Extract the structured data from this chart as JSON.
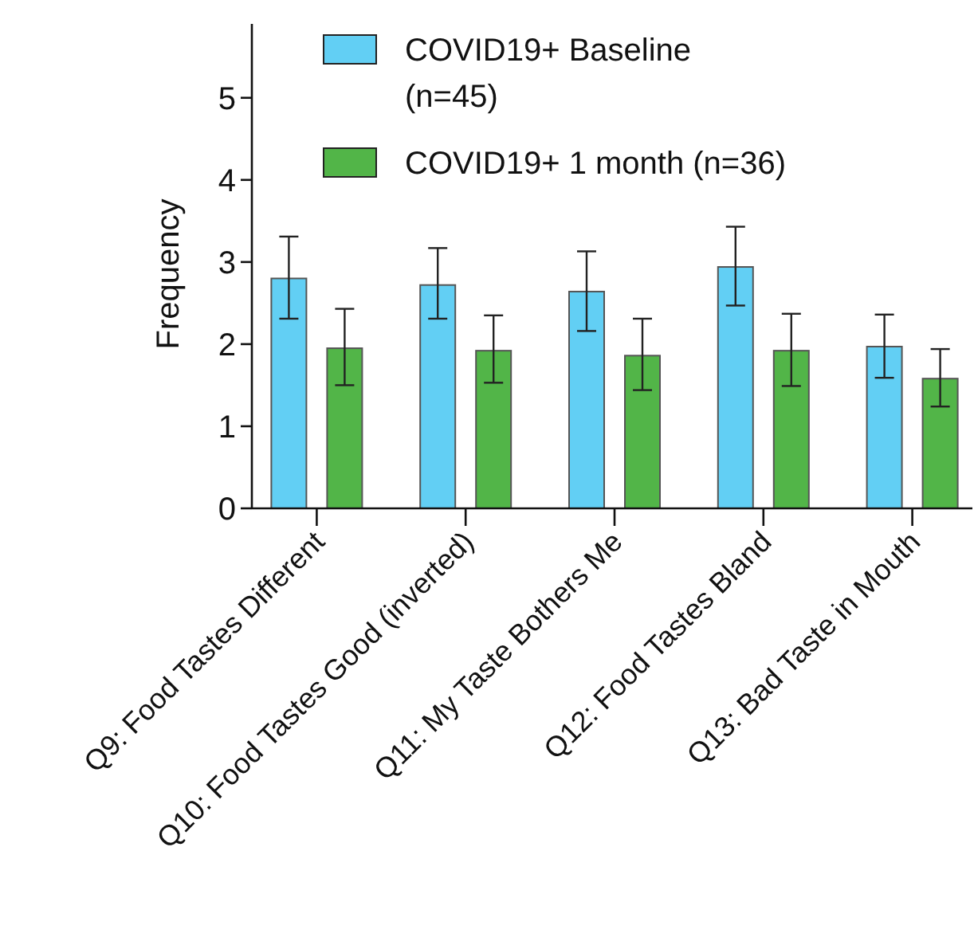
{
  "chart_data": {
    "type": "bar",
    "ylabel": "Frequency",
    "categories": [
      "Q9: Food Tastes Different",
      "Q10: Food Tastes Good (inverted)",
      "Q11: My Taste Bothers Me",
      "Q12: Food Tastes Bland",
      "Q13: Bad Taste in Mouth"
    ],
    "series": [
      {
        "name": "COVID19+ Baseline (n=45)",
        "color": "#62cff4",
        "values": [
          2.8,
          2.72,
          2.64,
          2.94,
          1.97
        ],
        "errors": [
          [
            2.31,
            3.31
          ],
          [
            2.31,
            3.17
          ],
          [
            2.16,
            3.13
          ],
          [
            2.47,
            3.43
          ],
          [
            1.59,
            2.36
          ]
        ]
      },
      {
        "name": "COVID19+ 1 month (n=36)",
        "color": "#52b548",
        "values": [
          1.95,
          1.92,
          1.86,
          1.92,
          1.58
        ],
        "errors": [
          [
            1.5,
            2.43
          ],
          [
            1.53,
            2.35
          ],
          [
            1.44,
            2.31
          ],
          [
            1.49,
            2.37
          ],
          [
            1.24,
            1.94
          ]
        ]
      }
    ],
    "ylim": [
      0,
      5.9
    ],
    "yticks": [
      0,
      1,
      2,
      3,
      4,
      5
    ],
    "grid": false,
    "legend": "top"
  }
}
